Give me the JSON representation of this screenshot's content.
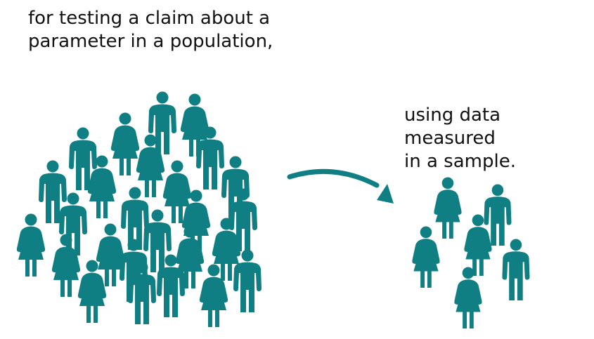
{
  "population_caption": "for testing a claim about a\nparameter in a population,",
  "sample_caption": "using data measured\nin a sample.",
  "colors": {
    "figure": "#0f7f84",
    "text": "#111111",
    "background": "#ffffff"
  },
  "icons": {
    "male": "person-male-icon",
    "female": "person-female-icon",
    "arrow": "curved-arrow-icon"
  }
}
